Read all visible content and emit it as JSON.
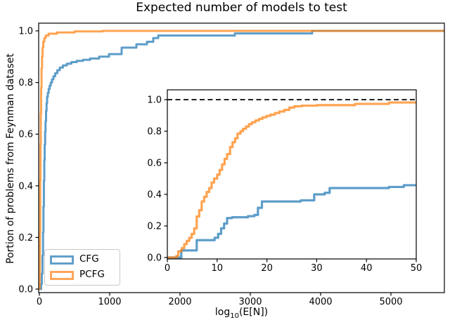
{
  "title": "Expected number of models to test",
  "main_axes": {
    "ylabel": "Portion of problems from Feynman dataset",
    "xlabel_prefix": "log",
    "xlabel_sub": "10",
    "xlabel_suffix": "(E[N])",
    "x_tick_labels": [
      "0",
      "1000",
      "2000",
      "3000",
      "4000",
      "5000"
    ],
    "y_tick_labels": [
      "0.0",
      "0.2",
      "0.4",
      "0.6",
      "0.8",
      "1.0"
    ]
  },
  "inset_axes": {
    "x_tick_labels": [
      "0",
      "10",
      "20",
      "30",
      "40",
      "50"
    ],
    "y_tick_labels": [
      "0.0",
      "0.2",
      "0.4",
      "0.6",
      "0.8",
      "1.0"
    ]
  },
  "legend": {
    "items": [
      {
        "label": "CFG",
        "color": "#62a0ca"
      },
      {
        "label": "PCFG",
        "color": "#ffa55b"
      }
    ]
  },
  "colors": {
    "cfg_line": "rgba(31,119,180,0.72)",
    "pcfg_line": "rgba(255,127,14,0.72)",
    "reference_dashed": "#000000",
    "spine": "#000000"
  },
  "chart_data": [
    {
      "id": "main",
      "type": "line",
      "step": "post",
      "title": "Expected number of models to test",
      "xlabel": "log10(E[N])",
      "ylabel": "Portion of problems from Feynman dataset",
      "xlim": [
        0,
        5760
      ],
      "ylim": [
        0,
        1.02
      ],
      "x_ticks": [
        0,
        1000,
        2000,
        3000,
        4000,
        5000
      ],
      "y_ticks": [
        0,
        0.2,
        0.4,
        0.6,
        0.8,
        1.0
      ],
      "grid": false,
      "legend_position": "lower left",
      "series": [
        {
          "name": "CFG",
          "points": [
            [
              0,
              0
            ],
            [
              25,
              0.02
            ],
            [
              35,
              0.06
            ],
            [
              45,
              0.13
            ],
            [
              52,
              0.22
            ],
            [
              58,
              0.32
            ],
            [
              64,
              0.42
            ],
            [
              70,
              0.5
            ],
            [
              76,
              0.56
            ],
            [
              82,
              0.61
            ],
            [
              88,
              0.65
            ],
            [
              95,
              0.69
            ],
            [
              102,
              0.72
            ],
            [
              110,
              0.745
            ],
            [
              120,
              0.76
            ],
            [
              132,
              0.775
            ],
            [
              146,
              0.788
            ],
            [
              162,
              0.8
            ],
            [
              180,
              0.812
            ],
            [
              200,
              0.824
            ],
            [
              225,
              0.836
            ],
            [
              255,
              0.848
            ],
            [
              290,
              0.858
            ],
            [
              335,
              0.866
            ],
            [
              390,
              0.873
            ],
            [
              455,
              0.879
            ],
            [
              530,
              0.884
            ],
            [
              620,
              0.888
            ],
            [
              720,
              0.893
            ],
            [
              850,
              0.9
            ],
            [
              990,
              0.91
            ],
            [
              1170,
              0.935
            ],
            [
              1380,
              0.948
            ],
            [
              1530,
              0.958
            ],
            [
              1620,
              0.972
            ],
            [
              1690,
              0.982
            ],
            [
              2780,
              0.99
            ],
            [
              3880,
              1.0
            ],
            [
              5760,
              1.0
            ]
          ]
        },
        {
          "name": "PCFG",
          "points": [
            [
              0,
              0
            ],
            [
              4,
              0.06
            ],
            [
              8,
              0.22
            ],
            [
              12,
              0.42
            ],
            [
              16,
              0.56
            ],
            [
              20,
              0.68
            ],
            [
              25,
              0.78
            ],
            [
              31,
              0.855
            ],
            [
              38,
              0.9
            ],
            [
              46,
              0.935
            ],
            [
              55,
              0.958
            ],
            [
              70,
              0.972
            ],
            [
              90,
              0.982
            ],
            [
              130,
              0.989
            ],
            [
              250,
              0.994
            ],
            [
              500,
              0.998
            ],
            [
              900,
              1.0
            ],
            [
              5760,
              1.0
            ]
          ]
        }
      ]
    },
    {
      "id": "inset",
      "type": "line",
      "step": "post",
      "xlim": [
        0,
        50
      ],
      "ylim": [
        0,
        1.06
      ],
      "x_ticks": [
        0,
        10,
        20,
        30,
        40,
        50
      ],
      "y_ticks": [
        0,
        0.2,
        0.4,
        0.6,
        0.8,
        1.0
      ],
      "grid": false,
      "reference_line": {
        "y": 1.0,
        "style": "dashed",
        "color": "#000000"
      },
      "series": [
        {
          "name": "CFG",
          "points": [
            [
              0,
              0
            ],
            [
              2.8,
              0.045
            ],
            [
              5.9,
              0.11
            ],
            [
              9.5,
              0.125
            ],
            [
              10.2,
              0.15
            ],
            [
              10.8,
              0.185
            ],
            [
              11.4,
              0.215
            ],
            [
              12,
              0.25
            ],
            [
              13,
              0.255
            ],
            [
              16.2,
              0.262
            ],
            [
              17.5,
              0.27
            ],
            [
              18.2,
              0.315
            ],
            [
              19,
              0.355
            ],
            [
              26.8,
              0.362
            ],
            [
              29.5,
              0.4
            ],
            [
              31.6,
              0.41
            ],
            [
              32.6,
              0.44
            ],
            [
              44.5,
              0.447
            ],
            [
              47.5,
              0.458
            ],
            [
              50,
              0.458
            ]
          ]
        },
        {
          "name": "PCFG",
          "points": [
            [
              0,
              0
            ],
            [
              1.8,
              0.01
            ],
            [
              2.2,
              0.04
            ],
            [
              2.9,
              0.06
            ],
            [
              3.4,
              0.085
            ],
            [
              3.9,
              0.105
            ],
            [
              4.4,
              0.125
            ],
            [
              4.9,
              0.15
            ],
            [
              5.4,
              0.185
            ],
            [
              5.9,
              0.26
            ],
            [
              6.4,
              0.3
            ],
            [
              6.9,
              0.355
            ],
            [
              7.4,
              0.385
            ],
            [
              7.9,
              0.415
            ],
            [
              8.4,
              0.44
            ],
            [
              8.9,
              0.475
            ],
            [
              9.4,
              0.5
            ],
            [
              10,
              0.525
            ],
            [
              10.5,
              0.555
            ],
            [
              11,
              0.59
            ],
            [
              11.5,
              0.625
            ],
            [
              12,
              0.655
            ],
            [
              12.6,
              0.7
            ],
            [
              13.1,
              0.73
            ],
            [
              13.6,
              0.755
            ],
            [
              14.1,
              0.785
            ],
            [
              14.7,
              0.8
            ],
            [
              15.2,
              0.815
            ],
            [
              15.8,
              0.83
            ],
            [
              16.4,
              0.845
            ],
            [
              17,
              0.857
            ],
            [
              17.7,
              0.868
            ],
            [
              18.4,
              0.878
            ],
            [
              19.1,
              0.888
            ],
            [
              19.9,
              0.897
            ],
            [
              20.7,
              0.905
            ],
            [
              21.6,
              0.915
            ],
            [
              22.5,
              0.925
            ],
            [
              23.5,
              0.935
            ],
            [
              24.5,
              0.95
            ],
            [
              25.5,
              0.958
            ],
            [
              27,
              0.962
            ],
            [
              30,
              0.965
            ],
            [
              37.7,
              0.973
            ],
            [
              44.5,
              0.982
            ],
            [
              50,
              0.985
            ]
          ]
        }
      ]
    }
  ]
}
